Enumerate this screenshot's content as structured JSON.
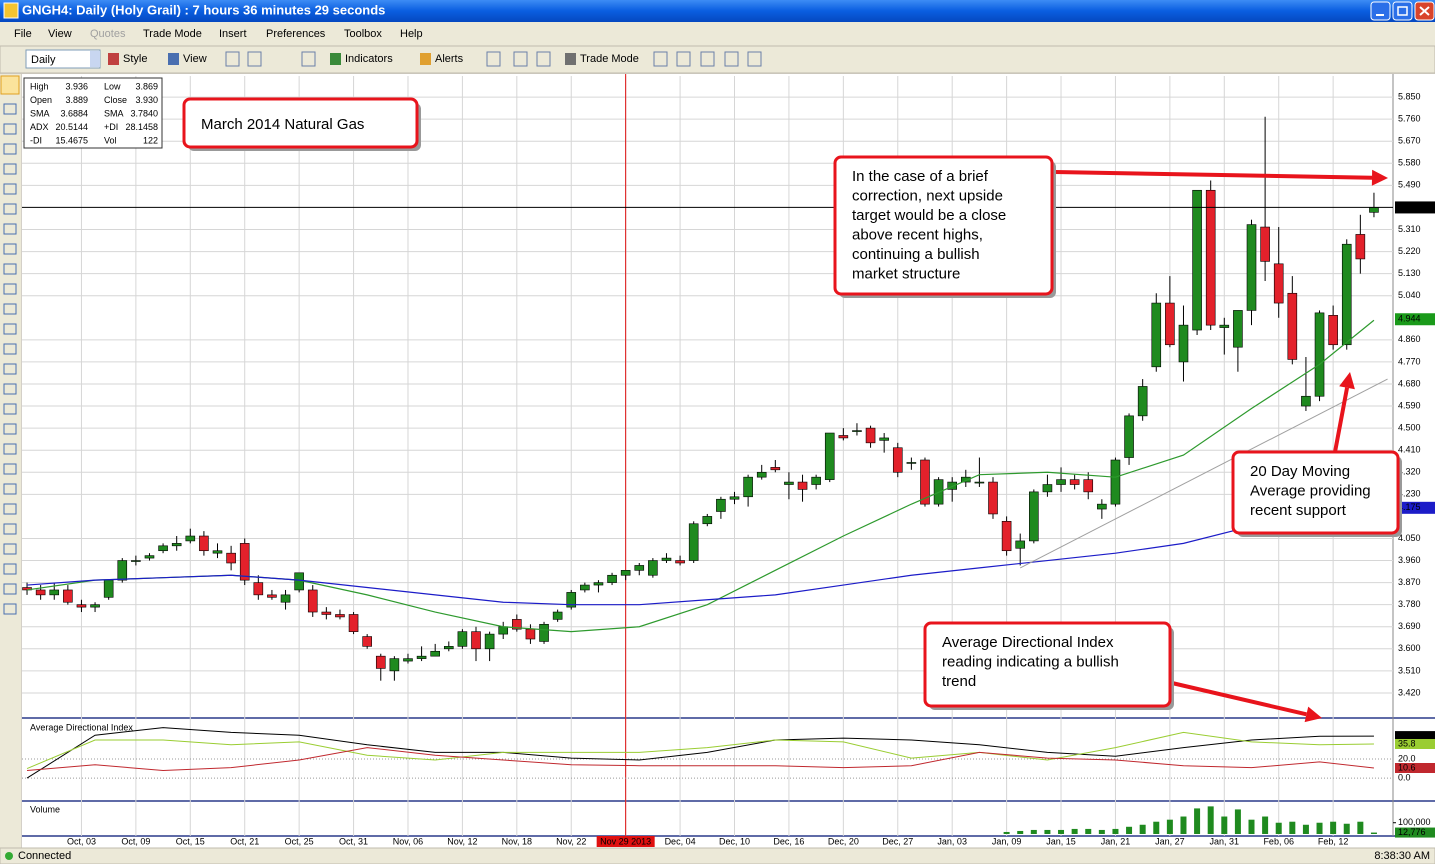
{
  "window": {
    "title": "GNGH4: Daily (Holy Grail) : 7 hours 36 minutes 29 seconds"
  },
  "menu": [
    "File",
    "View",
    "Quotes",
    "Trade Mode",
    "Insert",
    "Preferences",
    "Toolbox",
    "Help"
  ],
  "toolbar": {
    "interval": "Daily",
    "buttons": [
      "Style",
      "View",
      "Indicators",
      "Alerts",
      "Trade Mode"
    ]
  },
  "info_panel": [
    [
      "High",
      "3.936",
      "Low",
      "3.869"
    ],
    [
      "Open",
      "3.889",
      "Close",
      "3.930"
    ],
    [
      "SMA",
      "3.6884",
      "SMA",
      "3.7840"
    ],
    [
      "ADX",
      "20.5144",
      "+DI",
      "28.1458"
    ],
    [
      "-DI",
      "15.4675",
      "Vol",
      "122"
    ]
  ],
  "chart_data": [
    {
      "type": "candlestick",
      "categories": [
        null,
        null,
        null,
        null,
        "Oct, 03",
        null,
        null,
        null,
        "Oct, 09",
        null,
        null,
        null,
        "Oct, 15",
        null,
        null,
        null,
        "Oct, 21",
        null,
        null,
        null,
        "Oct, 25",
        null,
        null,
        null,
        "Oct, 31",
        null,
        null,
        null,
        "Nov, 06",
        null,
        null,
        null,
        "Nov, 12",
        null,
        null,
        null,
        "Nov, 18",
        null,
        null,
        null,
        "Nov, 22",
        null,
        null,
        null,
        "Nov 29 2013",
        null,
        null,
        null,
        "Dec, 04",
        null,
        null,
        null,
        "Dec, 10",
        null,
        null,
        null,
        "Dec, 16",
        null,
        null,
        null,
        "Dec, 20",
        null,
        null,
        null,
        "Dec, 27",
        null,
        null,
        null,
        "Jan, 03",
        null,
        null,
        null,
        "Jan, 09",
        null,
        null,
        null,
        "Jan, 15",
        null,
        null,
        null,
        "Jan, 21",
        null,
        null,
        null,
        "Jan, 27",
        null,
        null,
        null,
        "Jan, 31",
        null,
        null,
        null,
        "Feb, 06",
        null,
        null,
        null,
        "Feb, 12",
        null,
        null,
        null
      ],
      "ohlc": [
        [
          3.85,
          3.87,
          3.82,
          3.84
        ],
        [
          3.84,
          3.86,
          3.8,
          3.82
        ],
        [
          3.82,
          3.87,
          3.8,
          3.84
        ],
        [
          3.84,
          3.86,
          3.78,
          3.79
        ],
        [
          3.78,
          3.8,
          3.75,
          3.77
        ],
        [
          3.77,
          3.79,
          3.75,
          3.78
        ],
        [
          3.81,
          3.88,
          3.8,
          3.88
        ],
        [
          3.88,
          3.97,
          3.87,
          3.96
        ],
        [
          3.96,
          3.98,
          3.94,
          3.96
        ],
        [
          3.97,
          3.99,
          3.96,
          3.98
        ],
        [
          4.0,
          4.03,
          3.99,
          4.02
        ],
        [
          4.02,
          4.06,
          4.0,
          4.03
        ],
        [
          4.04,
          4.09,
          4.03,
          4.06
        ],
        [
          4.06,
          4.08,
          3.98,
          4.0
        ],
        [
          3.99,
          4.03,
          3.97,
          4.0
        ],
        [
          3.99,
          4.02,
          3.92,
          3.95
        ],
        [
          4.03,
          4.05,
          3.86,
          3.88
        ],
        [
          3.87,
          3.9,
          3.8,
          3.82
        ],
        [
          3.82,
          3.84,
          3.8,
          3.81
        ],
        [
          3.79,
          3.84,
          3.76,
          3.82
        ],
        [
          3.84,
          3.91,
          3.83,
          3.91
        ],
        [
          3.84,
          3.86,
          3.73,
          3.75
        ],
        [
          3.75,
          3.77,
          3.72,
          3.74
        ],
        [
          3.74,
          3.76,
          3.72,
          3.73
        ],
        [
          3.74,
          3.75,
          3.66,
          3.67
        ],
        [
          3.65,
          3.66,
          3.6,
          3.61
        ],
        [
          3.57,
          3.58,
          3.47,
          3.52
        ],
        [
          3.51,
          3.57,
          3.47,
          3.56
        ],
        [
          3.55,
          3.58,
          3.54,
          3.56
        ],
        [
          3.56,
          3.61,
          3.55,
          3.57
        ],
        [
          3.57,
          3.62,
          3.57,
          3.59
        ],
        [
          3.6,
          3.63,
          3.59,
          3.61
        ],
        [
          3.61,
          3.68,
          3.6,
          3.67
        ],
        [
          3.67,
          3.69,
          3.55,
          3.6
        ],
        [
          3.6,
          3.67,
          3.55,
          3.66
        ],
        [
          3.66,
          3.71,
          3.64,
          3.69
        ],
        [
          3.72,
          3.74,
          3.67,
          3.68
        ],
        [
          3.68,
          3.7,
          3.62,
          3.64
        ],
        [
          3.63,
          3.71,
          3.62,
          3.7
        ],
        [
          3.72,
          3.76,
          3.71,
          3.75
        ],
        [
          3.77,
          3.84,
          3.76,
          3.83
        ],
        [
          3.84,
          3.87,
          3.83,
          3.86
        ],
        [
          3.86,
          3.88,
          3.83,
          3.87
        ],
        [
          3.87,
          3.91,
          3.86,
          3.9
        ],
        [
          3.9,
          3.92,
          3.88,
          3.92
        ],
        [
          3.92,
          3.95,
          3.9,
          3.94
        ],
        [
          3.9,
          3.97,
          3.89,
          3.96
        ],
        [
          3.96,
          3.99,
          3.95,
          3.97
        ],
        [
          3.96,
          3.98,
          3.94,
          3.95
        ],
        [
          3.96,
          4.12,
          3.95,
          4.11
        ],
        [
          4.11,
          4.15,
          4.1,
          4.14
        ],
        [
          4.16,
          4.22,
          4.13,
          4.21
        ],
        [
          4.21,
          4.24,
          4.19,
          4.22
        ],
        [
          4.22,
          4.31,
          4.18,
          4.3
        ],
        [
          4.3,
          4.35,
          4.29,
          4.32
        ],
        [
          4.34,
          4.37,
          4.32,
          4.33
        ],
        [
          4.27,
          4.32,
          4.21,
          4.28
        ],
        [
          4.28,
          4.31,
          4.2,
          4.25
        ],
        [
          4.27,
          4.31,
          4.25,
          4.3
        ],
        [
          4.29,
          4.48,
          4.28,
          4.48
        ],
        [
          4.47,
          4.5,
          4.45,
          4.46
        ],
        [
          4.49,
          4.52,
          4.47,
          4.49
        ],
        [
          4.5,
          4.51,
          4.42,
          4.44
        ],
        [
          4.45,
          4.48,
          4.4,
          4.46
        ],
        [
          4.42,
          4.44,
          4.3,
          4.32
        ],
        [
          4.36,
          4.38,
          4.33,
          4.36
        ],
        [
          4.37,
          4.38,
          4.18,
          4.19
        ],
        [
          4.19,
          4.3,
          4.18,
          4.29
        ],
        [
          4.25,
          4.3,
          4.2,
          4.28
        ],
        [
          4.28,
          4.33,
          4.26,
          4.3
        ],
        [
          4.28,
          4.38,
          4.26,
          4.28
        ],
        [
          4.28,
          4.3,
          4.13,
          4.15
        ],
        [
          4.12,
          4.14,
          3.98,
          4.0
        ],
        [
          4.01,
          4.07,
          3.94,
          4.04
        ],
        [
          4.04,
          4.25,
          4.03,
          4.24
        ],
        [
          4.24,
          4.31,
          4.22,
          4.27
        ],
        [
          4.27,
          4.34,
          4.24,
          4.29
        ],
        [
          4.29,
          4.31,
          4.25,
          4.27
        ],
        [
          4.29,
          4.32,
          4.21,
          4.24
        ],
        [
          4.17,
          4.21,
          4.13,
          4.19
        ],
        [
          4.19,
          4.38,
          4.18,
          4.37
        ],
        [
          4.38,
          4.56,
          4.35,
          4.55
        ],
        [
          4.55,
          4.7,
          4.53,
          4.67
        ],
        [
          4.75,
          5.05,
          4.73,
          5.01
        ],
        [
          5.01,
          5.12,
          4.83,
          4.84
        ],
        [
          4.77,
          5.0,
          4.69,
          4.92
        ],
        [
          4.9,
          5.47,
          4.88,
          5.47
        ],
        [
          5.47,
          5.51,
          4.9,
          4.92
        ],
        [
          4.91,
          4.95,
          4.8,
          4.92
        ],
        [
          4.83,
          4.98,
          4.73,
          4.98
        ],
        [
          4.98,
          5.35,
          4.92,
          5.33
        ],
        [
          5.32,
          5.77,
          5.1,
          5.18
        ],
        [
          5.17,
          5.32,
          4.95,
          5.01
        ],
        [
          5.05,
          5.12,
          4.76,
          4.78
        ],
        [
          4.59,
          4.79,
          4.57,
          4.63
        ],
        [
          4.63,
          4.98,
          4.61,
          4.97
        ],
        [
          4.96,
          5.0,
          4.82,
          4.84
        ],
        [
          4.84,
          5.27,
          4.82,
          5.25
        ],
        [
          5.29,
          5.37,
          5.13,
          5.19
        ],
        [
          5.38,
          5.46,
          5.36,
          5.4
        ]
      ],
      "up_color": "#1f8a1f",
      "down_color": "#e3212b",
      "xlim": [
        -0.37,
        100.4
      ],
      "ylim": [
        3.326,
        5.936
      ],
      "grid": true,
      "yticks": [
        {
          "value": 5.85,
          "label": "5.850"
        },
        {
          "value": 5.76,
          "label": "5.760"
        },
        {
          "value": 5.67,
          "label": "5.670"
        },
        {
          "value": 5.58,
          "label": "5.580"
        },
        {
          "value": 5.49,
          "label": "5.490"
        },
        {
          "value": 5.31,
          "label": "5.310"
        },
        {
          "value": 5.22,
          "label": "5.220"
        },
        {
          "value": 5.13,
          "label": "5.130"
        },
        {
          "value": 5.04,
          "label": "5.040"
        },
        {
          "value": 4.86,
          "label": "4.860"
        },
        {
          "value": 4.77,
          "label": "4.770"
        },
        {
          "value": 4.68,
          "label": "4.680"
        },
        {
          "value": 4.59,
          "label": "4.590"
        },
        {
          "value": 4.5,
          "label": "4.500"
        },
        {
          "value": 4.41,
          "label": "4.410"
        },
        {
          "value": 4.32,
          "label": "4.320"
        },
        {
          "value": 4.23,
          "label": "4.230"
        },
        {
          "value": 4.05,
          "label": "4.050"
        },
        {
          "value": 3.96,
          "label": "3.960"
        },
        {
          "value": 3.87,
          "label": "3.870"
        },
        {
          "value": 3.78,
          "label": "3.780"
        },
        {
          "value": 3.69,
          "label": "3.690"
        },
        {
          "value": 3.6,
          "label": "3.600"
        },
        {
          "value": 3.51,
          "label": "3.510"
        },
        {
          "value": 3.42,
          "label": "3.420"
        }
      ],
      "lines": [
        {
          "color": "#2e9a2e",
          "x": [
            0,
            5,
            10,
            15,
            20,
            25,
            30,
            35,
            40,
            45,
            50,
            55,
            60,
            65,
            70,
            75,
            80,
            85,
            90,
            95,
            99
          ],
          "values": [
            3.84,
            3.88,
            3.89,
            3.9,
            3.88,
            3.82,
            3.75,
            3.69,
            3.67,
            3.69,
            3.78,
            3.92,
            4.06,
            4.19,
            4.31,
            4.32,
            4.3,
            4.39,
            4.58,
            4.76,
            4.94
          ]
        },
        {
          "color": "#1c1cc8",
          "x": [
            0,
            5,
            10,
            15,
            20,
            25,
            30,
            35,
            40,
            45,
            50,
            55,
            60,
            65,
            70,
            75,
            80,
            85,
            90,
            95,
            99
          ],
          "values": [
            3.86,
            3.88,
            3.89,
            3.9,
            3.88,
            3.85,
            3.82,
            3.79,
            3.78,
            3.78,
            3.8,
            3.82,
            3.86,
            3.9,
            3.93,
            3.96,
            3.99,
            4.03,
            4.1,
            4.15,
            4.175
          ]
        }
      ],
      "trendline": {
        "color": "#a0a0a0",
        "x": [
          73,
          100
        ],
        "values": [
          3.93,
          4.7
        ]
      },
      "price_markers": [
        {
          "value": 5.4,
          "label": "5.400",
          "color": "#000000",
          "line": true
        },
        {
          "value": 4.944,
          "label": "4.944",
          "color": "#1a9a1a"
        },
        {
          "value": 4.175,
          "label": "4.175",
          "color": "#1c1cc8"
        }
      ],
      "cursor_index": 44
    },
    {
      "type": "line",
      "title": "Average Directional Index",
      "xlim": [
        -0.37,
        100.4
      ],
      "ylim": [
        -23,
        61
      ],
      "yticks": [
        {
          "value": 20,
          "label": "20.0"
        },
        {
          "value": 0,
          "label": "0.0"
        }
      ],
      "x": [
        0,
        5,
        10,
        15,
        20,
        25,
        30,
        35,
        40,
        45,
        50,
        55,
        60,
        65,
        70,
        75,
        80,
        85,
        90,
        95,
        99
      ],
      "series": [
        {
          "name": "ADX",
          "color": "#000000",
          "values": [
            0,
            45,
            53,
            48,
            45,
            35,
            27,
            27,
            21,
            19,
            27,
            40,
            42,
            40,
            35,
            27,
            23,
            32,
            40,
            44,
            44.1
          ],
          "value_label": "44.1"
        },
        {
          "name": "+DI",
          "color": "#9acd32",
          "values": [
            10,
            40,
            40,
            35,
            38,
            24,
            19,
            27,
            27,
            27,
            32,
            40,
            38,
            21,
            27,
            19,
            32,
            48,
            38,
            35,
            35.8
          ],
          "value_label": "35.8"
        },
        {
          "name": "-DI",
          "color": "#c0282e",
          "values": [
            8,
            14,
            8,
            11,
            19,
            32,
            24,
            19,
            14,
            13,
            13,
            13,
            11,
            13,
            27,
            21,
            19,
            13,
            11,
            17,
            10.6
          ],
          "value_label": "10.6"
        }
      ]
    },
    {
      "type": "bar",
      "title": "Volume",
      "xlim": [
        -0.37,
        100.4
      ],
      "ylim": [
        0,
        275000
      ],
      "color": "#1f8a1f",
      "yticks": [
        {
          "value": 100000,
          "label": "100,000"
        }
      ],
      "x": [
        72,
        73,
        74,
        75,
        76,
        77,
        78,
        79,
        80,
        81,
        82,
        83,
        84,
        85,
        86,
        87,
        88,
        89,
        90,
        91,
        92,
        93,
        94,
        95,
        96,
        97,
        98,
        99
      ],
      "values": [
        18000,
        27000,
        36000,
        36000,
        36000,
        45000,
        45000,
        36000,
        45000,
        64000,
        82000,
        109000,
        127000,
        155000,
        227000,
        245000,
        155000,
        218000,
        127000,
        155000,
        100000,
        109000,
        82000,
        100000,
        109000,
        91000,
        109000,
        12776
      ],
      "last_label": "12,776"
    }
  ],
  "annotations": [
    {
      "lines": [
        "March 2014 Natural Gas"
      ]
    },
    {
      "lines": [
        "In the case of a brief",
        "correction, next upside",
        "target would be a close",
        "above recent highs,",
        "continuing a bullish",
        "market structure"
      ]
    },
    {
      "lines": [
        "20 Day Moving",
        "Average providing",
        "recent support"
      ]
    },
    {
      "lines": [
        "Average Directional Index",
        "reading indicating a bullish",
        "trend"
      ]
    }
  ],
  "status": {
    "connection": "Connected",
    "time": "8:38:30 AM"
  }
}
